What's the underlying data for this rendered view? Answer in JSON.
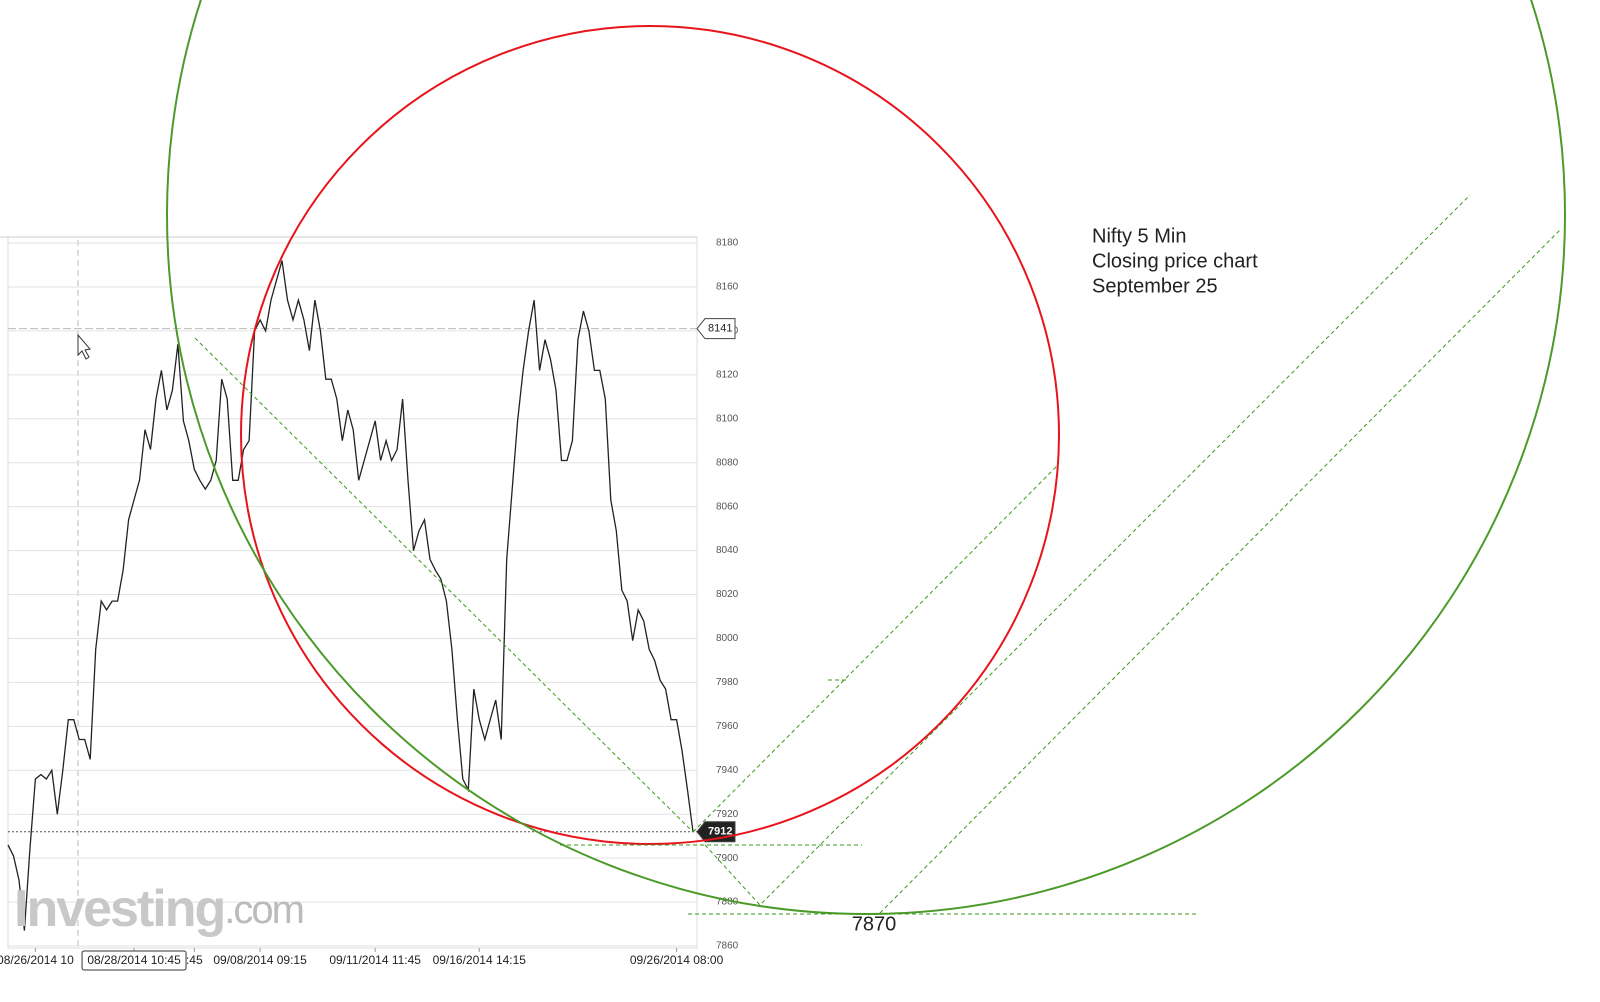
{
  "chart_data": {
    "type": "line",
    "color": "#222",
    "values": [
      7906,
      7901,
      7890,
      7867,
      7904,
      7936,
      7938,
      7936,
      7940,
      7920,
      7940,
      7963,
      7963,
      7954,
      7954,
      7945,
      7995,
      8017,
      8013,
      8017,
      8017,
      8031,
      8054,
      8063,
      8072,
      8095,
      8086,
      8109,
      8122,
      8104,
      8113,
      8134,
      8099,
      8090,
      8077,
      8072,
      8068,
      8072,
      8081,
      8118,
      8109,
      8072,
      8072,
      8086,
      8090,
      8140,
      8145,
      8140,
      8154,
      8163,
      8172,
      8154,
      8145,
      8154,
      8145,
      8131,
      8154,
      8140,
      8118,
      8118,
      8109,
      8090,
      8104,
      8095,
      8072,
      8081,
      8090,
      8099,
      8081,
      8090,
      8081,
      8086,
      8109,
      8072,
      8040,
      8049,
      8054,
      8036,
      8031,
      8027,
      8017,
      7995,
      7963,
      7936,
      7931,
      7977,
      7963,
      7954,
      7963,
      7972,
      7954,
      8036,
      8068,
      8099,
      8122,
      8140,
      8154,
      8122,
      8136,
      8127,
      8113,
      8081,
      8081,
      8090,
      8136,
      8149,
      8140,
      8122,
      8122,
      8109,
      8063,
      8049,
      8022,
      8017,
      7999,
      8013,
      8008,
      7995,
      7990,
      7981,
      7977,
      7963,
      7963,
      7949,
      7931,
      7912
    ],
    "xlim": [
      0,
      125
    ],
    "xticks": [
      {
        "value": 5,
        "label": "08/26/2014 10"
      },
      {
        "value": 23,
        "label": "08/28/2014 10:45"
      },
      {
        "value": 34,
        "label": ":45"
      },
      {
        "value": 46,
        "label": "09/08/2014 09:15"
      },
      {
        "value": 67,
        "label": "09/11/2014 11:45"
      },
      {
        "value": 86,
        "label": "09/16/2014 14:15"
      },
      {
        "value": 122,
        "label": "09/26/2014 08:00"
      }
    ],
    "ylim": [
      7860,
      8180
    ],
    "yticks": [
      7860,
      7880,
      7900,
      7920,
      7940,
      7960,
      7980,
      8000,
      8020,
      8040,
      8060,
      8080,
      8100,
      8120,
      8140,
      8160,
      8180
    ],
    "grid": true,
    "price_markers": [
      8141,
      7912
    ],
    "level_label": "7870",
    "annotation": [
      "Nifty 5 Min",
      "Closing price chart",
      "September 25"
    ],
    "watermark": [
      "Investing",
      ".com"
    ]
  }
}
